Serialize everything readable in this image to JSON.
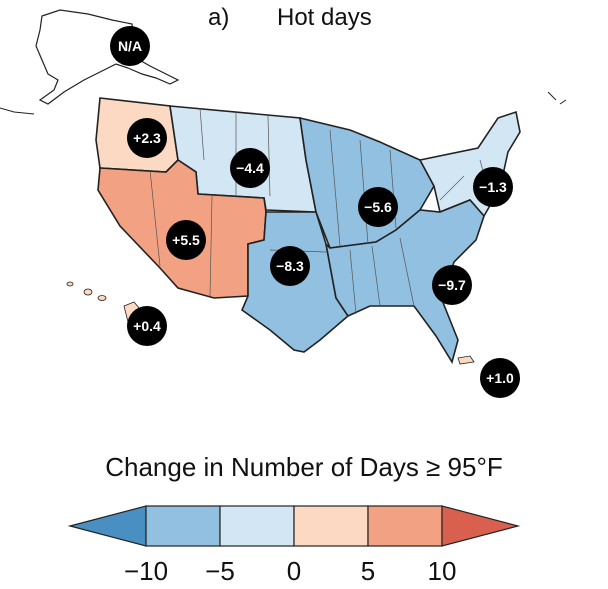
{
  "title": {
    "panel_letter": "a)",
    "text": "Hot days"
  },
  "legend": {
    "title": "Change in Number of Days ≥ 95°F",
    "ticks": [
      "−10",
      "−5",
      "0",
      "5",
      "10"
    ],
    "bins": [
      {
        "range": "< -10",
        "color": "#4a8fc2"
      },
      {
        "range": "-10 to -5",
        "color": "#92c0e0"
      },
      {
        "range": "-5 to 0",
        "color": "#d2e6f3"
      },
      {
        "range": "0 to 5",
        "color": "#fcd9c3"
      },
      {
        "range": "5 to 10",
        "color": "#f2a283"
      },
      {
        "range": "> 10",
        "color": "#d9604f"
      }
    ]
  },
  "regions": [
    {
      "name": "Alaska",
      "label": "N/A"
    },
    {
      "name": "Northwest",
      "label": "+2.3",
      "color": "#fcd9c3"
    },
    {
      "name": "Northern Great Plains",
      "label": "−4.4",
      "color": "#d2e6f3"
    },
    {
      "name": "Southwest",
      "label": "+5.5",
      "color": "#f2a283"
    },
    {
      "name": "Southern Great Plains",
      "label": "−8.3",
      "color": "#92c0e0"
    },
    {
      "name": "Midwest",
      "label": "−5.6",
      "color": "#92c0e0"
    },
    {
      "name": "Northeast",
      "label": "−1.3",
      "color": "#d2e6f3"
    },
    {
      "name": "Southeast",
      "label": "−9.7",
      "color": "#92c0e0"
    },
    {
      "name": "Hawaii",
      "label": "+0.4",
      "color": "#fcd9c3"
    },
    {
      "name": "Puerto Rico",
      "label": "+1.0",
      "color": "#fcd9c3"
    }
  ]
}
